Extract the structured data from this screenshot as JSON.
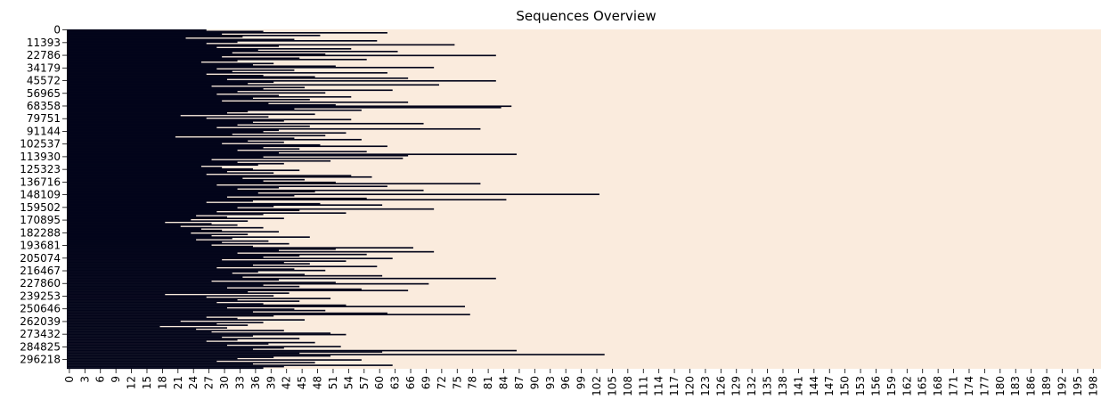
{
  "chart_data": {
    "type": "heatmap",
    "title": "Sequences Overview",
    "xlabel": "",
    "ylabel": "",
    "xlim": [
      0,
      200
    ],
    "x_ticks": [
      0,
      3,
      6,
      9,
      12,
      15,
      18,
      21,
      24,
      27,
      30,
      33,
      36,
      39,
      42,
      45,
      48,
      51,
      54,
      57,
      60,
      63,
      66,
      69,
      72,
      75,
      78,
      81,
      84,
      87,
      90,
      93,
      96,
      99,
      102,
      105,
      108,
      111,
      114,
      117,
      120,
      123,
      126,
      129,
      132,
      135,
      138,
      141,
      144,
      147,
      150,
      153,
      156,
      159,
      162,
      165,
      168,
      171,
      174,
      177,
      180,
      183,
      186,
      189,
      192,
      195,
      198
    ],
    "y_ticks": [
      0,
      11393,
      22786,
      34179,
      45572,
      56965,
      68358,
      79751,
      91144,
      102537,
      113930,
      125323,
      136716,
      148109,
      159502,
      170895,
      182288,
      193681,
      205074,
      216467,
      227860,
      239253,
      250646,
      262039,
      273432,
      284825,
      296218
    ],
    "n_rows": 305000,
    "colors": {
      "filled": "#03051a",
      "empty": "#faebdd"
    },
    "grid": false,
    "legend": "none",
    "rows": [
      {
        "y": 0,
        "length": 27
      },
      {
        "y": 1200,
        "length": 38
      },
      {
        "y": 2400,
        "length": 62
      },
      {
        "y": 3600,
        "length": 30
      },
      {
        "y": 4800,
        "length": 49
      },
      {
        "y": 6000,
        "length": 34
      },
      {
        "y": 7200,
        "length": 23
      },
      {
        "y": 8400,
        "length": 44
      },
      {
        "y": 9600,
        "length": 60
      },
      {
        "y": 10800,
        "length": 33
      },
      {
        "y": 12000,
        "length": 27
      },
      {
        "y": 13200,
        "length": 75
      },
      {
        "y": 14400,
        "length": 41
      },
      {
        "y": 15600,
        "length": 29
      },
      {
        "y": 16800,
        "length": 55
      },
      {
        "y": 18000,
        "length": 37
      },
      {
        "y": 19200,
        "length": 64
      },
      {
        "y": 20400,
        "length": 32
      },
      {
        "y": 21600,
        "length": 50
      },
      {
        "y": 22800,
        "length": 83
      },
      {
        "y": 24000,
        "length": 30
      },
      {
        "y": 25200,
        "length": 45
      },
      {
        "y": 26400,
        "length": 58
      },
      {
        "y": 27600,
        "length": 33
      },
      {
        "y": 28800,
        "length": 26
      },
      {
        "y": 30000,
        "length": 40
      },
      {
        "y": 31200,
        "length": 36
      },
      {
        "y": 32400,
        "length": 52
      },
      {
        "y": 33600,
        "length": 71
      },
      {
        "y": 34800,
        "length": 29
      },
      {
        "y": 36000,
        "length": 44
      },
      {
        "y": 37200,
        "length": 32
      },
      {
        "y": 38400,
        "length": 62
      },
      {
        "y": 39600,
        "length": 27
      },
      {
        "y": 40800,
        "length": 38
      },
      {
        "y": 42000,
        "length": 48
      },
      {
        "y": 43200,
        "length": 66
      },
      {
        "y": 44400,
        "length": 31
      },
      {
        "y": 45600,
        "length": 83
      },
      {
        "y": 46800,
        "length": 40
      },
      {
        "y": 48000,
        "length": 35
      },
      {
        "y": 49200,
        "length": 72
      },
      {
        "y": 50400,
        "length": 28
      },
      {
        "y": 51600,
        "length": 46
      },
      {
        "y": 52800,
        "length": 38
      },
      {
        "y": 54000,
        "length": 63
      },
      {
        "y": 55200,
        "length": 33
      },
      {
        "y": 56400,
        "length": 50
      },
      {
        "y": 57600,
        "length": 29
      },
      {
        "y": 58800,
        "length": 41
      },
      {
        "y": 60000,
        "length": 55
      },
      {
        "y": 61200,
        "length": 36
      },
      {
        "y": 62400,
        "length": 47
      },
      {
        "y": 63600,
        "length": 30
      },
      {
        "y": 64800,
        "length": 66
      },
      {
        "y": 66000,
        "length": 39
      },
      {
        "y": 67200,
        "length": 52
      },
      {
        "y": 68400,
        "length": 86
      },
      {
        "y": 69600,
        "length": 84
      },
      {
        "y": 70800,
        "length": 44
      },
      {
        "y": 72000,
        "length": 57
      },
      {
        "y": 73200,
        "length": 35
      },
      {
        "y": 74400,
        "length": 31
      },
      {
        "y": 75600,
        "length": 48
      },
      {
        "y": 76800,
        "length": 22
      },
      {
        "y": 78000,
        "length": 39
      },
      {
        "y": 79200,
        "length": 27
      },
      {
        "y": 80400,
        "length": 55
      },
      {
        "y": 81600,
        "length": 42
      },
      {
        "y": 82800,
        "length": 36
      },
      {
        "y": 84000,
        "length": 69
      },
      {
        "y": 85200,
        "length": 33
      },
      {
        "y": 86400,
        "length": 47
      },
      {
        "y": 87600,
        "length": 29
      },
      {
        "y": 88800,
        "length": 80
      },
      {
        "y": 90000,
        "length": 41
      },
      {
        "y": 91200,
        "length": 38
      },
      {
        "y": 92400,
        "length": 54
      },
      {
        "y": 93600,
        "length": 32
      },
      {
        "y": 94800,
        "length": 50
      },
      {
        "y": 96000,
        "length": 21
      },
      {
        "y": 97200,
        "length": 44
      },
      {
        "y": 98400,
        "length": 57
      },
      {
        "y": 99600,
        "length": 35
      },
      {
        "y": 100800,
        "length": 42
      },
      {
        "y": 102000,
        "length": 30
      },
      {
        "y": 103200,
        "length": 49
      },
      {
        "y": 104400,
        "length": 62
      },
      {
        "y": 105600,
        "length": 38
      },
      {
        "y": 106800,
        "length": 45
      },
      {
        "y": 108000,
        "length": 33
      },
      {
        "y": 109200,
        "length": 58
      },
      {
        "y": 110400,
        "length": 41
      },
      {
        "y": 111600,
        "length": 87
      },
      {
        "y": 112800,
        "length": 66
      },
      {
        "y": 114000,
        "length": 38
      },
      {
        "y": 115200,
        "length": 65
      },
      {
        "y": 116400,
        "length": 28
      },
      {
        "y": 117600,
        "length": 51
      },
      {
        "y": 118800,
        "length": 33
      },
      {
        "y": 120000,
        "length": 42
      },
      {
        "y": 121200,
        "length": 37
      },
      {
        "y": 122400,
        "length": 26
      },
      {
        "y": 123600,
        "length": 30
      },
      {
        "y": 124800,
        "length": 36
      },
      {
        "y": 126000,
        "length": 45
      },
      {
        "y": 127200,
        "length": 31
      },
      {
        "y": 128400,
        "length": 40
      },
      {
        "y": 129600,
        "length": 27
      },
      {
        "y": 130800,
        "length": 55
      },
      {
        "y": 132000,
        "length": 59
      },
      {
        "y": 133200,
        "length": 34
      },
      {
        "y": 134400,
        "length": 46
      },
      {
        "y": 135600,
        "length": 38
      },
      {
        "y": 136800,
        "length": 52
      },
      {
        "y": 138000,
        "length": 80
      },
      {
        "y": 139200,
        "length": 29
      },
      {
        "y": 140400,
        "length": 62
      },
      {
        "y": 141600,
        "length": 41
      },
      {
        "y": 142800,
        "length": 33
      },
      {
        "y": 144000,
        "length": 69
      },
      {
        "y": 145200,
        "length": 48
      },
      {
        "y": 146400,
        "length": 37
      },
      {
        "y": 147600,
        "length": 103
      },
      {
        "y": 148800,
        "length": 44
      },
      {
        "y": 150000,
        "length": 31
      },
      {
        "y": 151200,
        "length": 58
      },
      {
        "y": 152400,
        "length": 85
      },
      {
        "y": 153600,
        "length": 36
      },
      {
        "y": 154800,
        "length": 27
      },
      {
        "y": 156000,
        "length": 49
      },
      {
        "y": 157200,
        "length": 61
      },
      {
        "y": 158400,
        "length": 40
      },
      {
        "y": 159600,
        "length": 33
      },
      {
        "y": 160800,
        "length": 71
      },
      {
        "y": 162000,
        "length": 45
      },
      {
        "y": 163200,
        "length": 29
      },
      {
        "y": 164400,
        "length": 54
      },
      {
        "y": 165600,
        "length": 38
      },
      {
        "y": 166800,
        "length": 25
      },
      {
        "y": 168000,
        "length": 31
      },
      {
        "y": 169200,
        "length": 42
      },
      {
        "y": 170400,
        "length": 24
      },
      {
        "y": 171600,
        "length": 35
      },
      {
        "y": 172800,
        "length": 19
      },
      {
        "y": 174000,
        "length": 28
      },
      {
        "y": 175200,
        "length": 33
      },
      {
        "y": 176400,
        "length": 22
      },
      {
        "y": 177600,
        "length": 38
      },
      {
        "y": 178800,
        "length": 26
      },
      {
        "y": 180000,
        "length": 30
      },
      {
        "y": 181200,
        "length": 41
      },
      {
        "y": 182400,
        "length": 24
      },
      {
        "y": 183600,
        "length": 35
      },
      {
        "y": 184800,
        "length": 28
      },
      {
        "y": 186000,
        "length": 47
      },
      {
        "y": 187200,
        "length": 32
      },
      {
        "y": 188400,
        "length": 25
      },
      {
        "y": 189600,
        "length": 39
      },
      {
        "y": 190800,
        "length": 30
      },
      {
        "y": 192000,
        "length": 43
      },
      {
        "y": 193200,
        "length": 28
      },
      {
        "y": 194400,
        "length": 36
      },
      {
        "y": 195600,
        "length": 67
      },
      {
        "y": 196800,
        "length": 52
      },
      {
        "y": 198000,
        "length": 41
      },
      {
        "y": 199200,
        "length": 71
      },
      {
        "y": 200400,
        "length": 33
      },
      {
        "y": 201600,
        "length": 58
      },
      {
        "y": 202800,
        "length": 45
      },
      {
        "y": 204000,
        "length": 38
      },
      {
        "y": 205200,
        "length": 63
      },
      {
        "y": 206400,
        "length": 30
      },
      {
        "y": 207600,
        "length": 54
      },
      {
        "y": 208800,
        "length": 42
      },
      {
        "y": 210000,
        "length": 47
      },
      {
        "y": 211200,
        "length": 36
      },
      {
        "y": 212400,
        "length": 60
      },
      {
        "y": 213600,
        "length": 29
      },
      {
        "y": 214800,
        "length": 44
      },
      {
        "y": 216000,
        "length": 50
      },
      {
        "y": 217200,
        "length": 37
      },
      {
        "y": 218400,
        "length": 32
      },
      {
        "y": 219600,
        "length": 46
      },
      {
        "y": 220800,
        "length": 61
      },
      {
        "y": 222000,
        "length": 34
      },
      {
        "y": 223200,
        "length": 83
      },
      {
        "y": 224400,
        "length": 41
      },
      {
        "y": 225600,
        "length": 28
      },
      {
        "y": 226800,
        "length": 52
      },
      {
        "y": 228000,
        "length": 70
      },
      {
        "y": 229200,
        "length": 38
      },
      {
        "y": 230400,
        "length": 45
      },
      {
        "y": 231600,
        "length": 31
      },
      {
        "y": 232800,
        "length": 57
      },
      {
        "y": 234000,
        "length": 66
      },
      {
        "y": 235200,
        "length": 35
      },
      {
        "y": 236400,
        "length": 43
      },
      {
        "y": 237600,
        "length": 19
      },
      {
        "y": 238800,
        "length": 40
      },
      {
        "y": 240000,
        "length": 27
      },
      {
        "y": 241200,
        "length": 51
      },
      {
        "y": 242400,
        "length": 33
      },
      {
        "y": 243600,
        "length": 45
      },
      {
        "y": 244800,
        "length": 29
      },
      {
        "y": 246000,
        "length": 38
      },
      {
        "y": 247200,
        "length": 54
      },
      {
        "y": 248400,
        "length": 77
      },
      {
        "y": 249600,
        "length": 31
      },
      {
        "y": 250800,
        "length": 44
      },
      {
        "y": 252000,
        "length": 50
      },
      {
        "y": 253200,
        "length": 36
      },
      {
        "y": 254400,
        "length": 62
      },
      {
        "y": 255600,
        "length": 78
      },
      {
        "y": 256800,
        "length": 40
      },
      {
        "y": 258000,
        "length": 27
      },
      {
        "y": 259200,
        "length": 33
      },
      {
        "y": 260400,
        "length": 46
      },
      {
        "y": 261600,
        "length": 22
      },
      {
        "y": 262800,
        "length": 38
      },
      {
        "y": 264000,
        "length": 29
      },
      {
        "y": 265200,
        "length": 35
      },
      {
        "y": 266400,
        "length": 18
      },
      {
        "y": 267600,
        "length": 31
      },
      {
        "y": 268800,
        "length": 25
      },
      {
        "y": 270000,
        "length": 42
      },
      {
        "y": 271200,
        "length": 28
      },
      {
        "y": 272400,
        "length": 51
      },
      {
        "y": 273600,
        "length": 54
      },
      {
        "y": 274800,
        "length": 36
      },
      {
        "y": 276000,
        "length": 30
      },
      {
        "y": 277200,
        "length": 45
      },
      {
        "y": 278400,
        "length": 33
      },
      {
        "y": 279600,
        "length": 27
      },
      {
        "y": 280800,
        "length": 48
      },
      {
        "y": 282000,
        "length": 39
      },
      {
        "y": 283200,
        "length": 31
      },
      {
        "y": 284400,
        "length": 53
      },
      {
        "y": 285600,
        "length": 42
      },
      {
        "y": 286800,
        "length": 36
      },
      {
        "y": 288000,
        "length": 87
      },
      {
        "y": 289200,
        "length": 61
      },
      {
        "y": 290400,
        "length": 45
      },
      {
        "y": 291600,
        "length": 104
      },
      {
        "y": 292800,
        "length": 51
      },
      {
        "y": 294000,
        "length": 40
      },
      {
        "y": 295200,
        "length": 33
      },
      {
        "y": 296400,
        "length": 57
      },
      {
        "y": 297600,
        "length": 29
      },
      {
        "y": 298800,
        "length": 48
      },
      {
        "y": 300000,
        "length": 36
      },
      {
        "y": 301200,
        "length": 63
      },
      {
        "y": 302400,
        "length": 42
      },
      {
        "y": 303600,
        "length": 38
      }
    ]
  }
}
